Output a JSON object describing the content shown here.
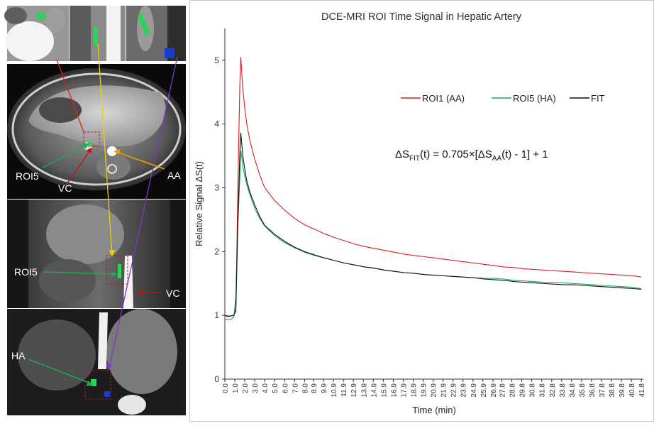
{
  "figure_labels": {
    "roi5_axial": "ROI5",
    "vc_axial": "VC",
    "aa_axial": "AA",
    "roi5_sagittal": "ROI5",
    "vc_sagittal": "VC",
    "ha_coronal": "HA"
  },
  "chart_data": {
    "type": "line",
    "title": "DCE-MRI ROI Time Signal in Hepatic Artery",
    "xlabel": "Time (min)",
    "ylabel": "Relative Signal ΔS(t)",
    "xlim": [
      0,
      42
    ],
    "ylim": [
      0,
      5.5
    ],
    "yticks": [
      0,
      1,
      2,
      3,
      4,
      5
    ],
    "xticks": [
      0.0,
      1.0,
      2.0,
      3.0,
      4.0,
      5.0,
      6.0,
      7.0,
      8.0,
      8.9,
      9.9,
      10.9,
      11.9,
      12.9,
      13.9,
      14.9,
      15.9,
      16.9,
      17.9,
      18.9,
      19.9,
      20.9,
      21.9,
      22.9,
      23.9,
      24.9,
      25.9,
      26.9,
      27.8,
      28.8,
      29.8,
      30.8,
      31.8,
      32.8,
      33.8,
      34.8,
      35.8,
      36.8,
      37.8,
      38.8,
      39.8,
      40.8,
      41.8
    ],
    "legend_position": "upper-right",
    "annotation": {
      "lead": "ΔS",
      "sub1": "FIT",
      "mid": "(t) = 0.705×[ΔS",
      "sub2": "AA",
      "tail": "(t) - 1] + 1"
    },
    "series": [
      {
        "name": "ROI1 (AA)",
        "color": "#d62020",
        "x": [
          0,
          0.3,
          0.6,
          0.9,
          1.1,
          1.3,
          1.5,
          1.6,
          1.7,
          1.8,
          2.0,
          2.2,
          2.5,
          3.0,
          3.5,
          4.0,
          5.0,
          6.0,
          7.0,
          8.0,
          9.0,
          10.0,
          11.0,
          12.0,
          13.0,
          14.0,
          15.0,
          16.0,
          17.0,
          18.0,
          19.0,
          20.0,
          21.0,
          22.0,
          23.0,
          24.0,
          25.0,
          26.0,
          27.0,
          28.0,
          29.0,
          30.0,
          31.0,
          32.0,
          33.0,
          34.0,
          35.0,
          36.0,
          37.0,
          38.0,
          39.0,
          40.0,
          41.0,
          41.8
        ],
        "y": [
          1.0,
          0.98,
          0.99,
          1.0,
          1.1,
          3.0,
          4.6,
          5.05,
          4.8,
          4.55,
          4.25,
          4.0,
          3.75,
          3.45,
          3.2,
          3.0,
          2.8,
          2.65,
          2.52,
          2.42,
          2.35,
          2.28,
          2.22,
          2.17,
          2.12,
          2.08,
          2.05,
          2.02,
          1.99,
          1.96,
          1.94,
          1.92,
          1.9,
          1.88,
          1.86,
          1.84,
          1.82,
          1.8,
          1.78,
          1.76,
          1.75,
          1.73,
          1.72,
          1.71,
          1.7,
          1.69,
          1.68,
          1.67,
          1.66,
          1.65,
          1.64,
          1.63,
          1.62,
          1.6
        ]
      },
      {
        "name": "ROI5 (HA)",
        "color": "#1fa85a",
        "x": [
          0,
          0.3,
          0.6,
          0.9,
          1.1,
          1.3,
          1.5,
          1.6,
          1.7,
          1.8,
          2.0,
          2.2,
          2.5,
          3.0,
          3.5,
          4.0,
          5.0,
          6.0,
          7.0,
          8.0,
          9.0,
          10.0,
          11.0,
          12.0,
          13.0,
          14.0,
          15.0,
          16.0,
          17.0,
          18.0,
          19.0,
          20.0,
          21.0,
          22.0,
          23.0,
          24.0,
          25.0,
          26.0,
          27.0,
          28.0,
          29.0,
          30.0,
          31.0,
          32.0,
          33.0,
          34.0,
          35.0,
          36.0,
          37.0,
          38.0,
          39.0,
          40.0,
          41.0,
          41.8
        ],
        "y": [
          0.95,
          0.93,
          0.94,
          0.97,
          1.3,
          2.4,
          3.15,
          3.58,
          3.48,
          3.33,
          3.18,
          3.05,
          2.9,
          2.68,
          2.52,
          2.4,
          2.25,
          2.14,
          2.06,
          1.99,
          1.94,
          1.9,
          1.86,
          1.82,
          1.79,
          1.76,
          1.74,
          1.71,
          1.69,
          1.67,
          1.66,
          1.64,
          1.63,
          1.62,
          1.61,
          1.6,
          1.59,
          1.58,
          1.58,
          1.57,
          1.55,
          1.54,
          1.53,
          1.52,
          1.52,
          1.51,
          1.5,
          1.49,
          1.48,
          1.47,
          1.46,
          1.45,
          1.44,
          1.42
        ]
      },
      {
        "name": "FIT",
        "color": "#111111",
        "x": [
          0,
          0.3,
          0.6,
          0.9,
          1.1,
          1.3,
          1.5,
          1.6,
          1.7,
          1.8,
          2.0,
          2.2,
          2.5,
          3.0,
          3.5,
          4.0,
          5.0,
          6.0,
          7.0,
          8.0,
          9.0,
          10.0,
          11.0,
          12.0,
          13.0,
          14.0,
          15.0,
          16.0,
          17.0,
          18.0,
          19.0,
          20.0,
          21.0,
          22.0,
          23.0,
          24.0,
          25.0,
          26.0,
          27.0,
          28.0,
          29.0,
          30.0,
          31.0,
          32.0,
          33.0,
          34.0,
          35.0,
          36.0,
          37.0,
          38.0,
          39.0,
          40.0,
          41.0,
          41.8
        ],
        "y": [
          1.0,
          0.99,
          0.99,
          1.0,
          1.07,
          2.41,
          3.54,
          3.86,
          3.68,
          3.5,
          3.29,
          3.11,
          2.94,
          2.73,
          2.55,
          2.41,
          2.27,
          2.16,
          2.07,
          2.0,
          1.95,
          1.9,
          1.86,
          1.82,
          1.79,
          1.76,
          1.74,
          1.71,
          1.69,
          1.67,
          1.66,
          1.64,
          1.63,
          1.62,
          1.61,
          1.6,
          1.59,
          1.57,
          1.56,
          1.55,
          1.53,
          1.52,
          1.51,
          1.5,
          1.49,
          1.48,
          1.48,
          1.47,
          1.46,
          1.45,
          1.44,
          1.43,
          1.42,
          1.41
        ]
      }
    ]
  }
}
